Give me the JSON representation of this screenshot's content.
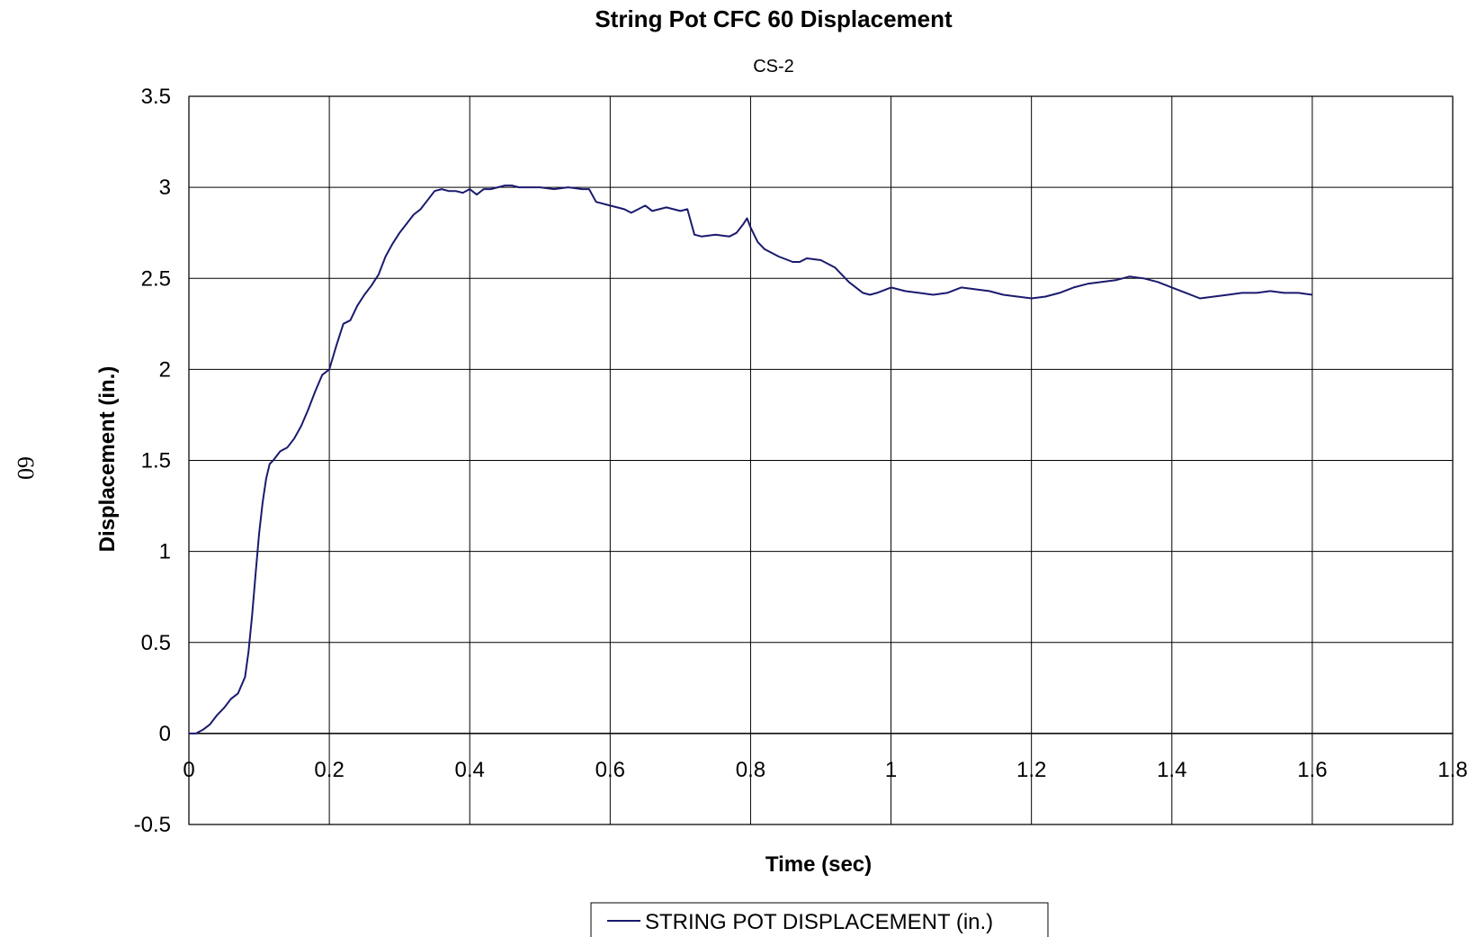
{
  "page_number": "60",
  "chart_data": {
    "type": "line",
    "title": "String Pot CFC 60 Displacement",
    "subtitle": "CS-2",
    "xlabel": "Time (sec)",
    "ylabel": "Displacement (in.)",
    "xlim": [
      0,
      1.8
    ],
    "ylim": [
      -0.5,
      3.5
    ],
    "x_ticks": [
      0,
      0.2,
      0.4,
      0.6,
      0.8,
      1,
      1.2,
      1.4,
      1.6,
      1.8
    ],
    "y_ticks": [
      -0.5,
      0,
      0.5,
      1,
      1.5,
      2,
      2.5,
      3,
      3.5
    ],
    "grid": true,
    "legend_position": "bottom",
    "line_color": "#1a1a6e",
    "series": [
      {
        "name": "STRING POT DISPLACEMENT (in.)",
        "x": [
          0,
          0.01,
          0.02,
          0.03,
          0.04,
          0.05,
          0.06,
          0.07,
          0.08,
          0.085,
          0.09,
          0.095,
          0.1,
          0.105,
          0.11,
          0.115,
          0.12,
          0.13,
          0.14,
          0.15,
          0.16,
          0.17,
          0.18,
          0.19,
          0.2,
          0.21,
          0.22,
          0.23,
          0.24,
          0.25,
          0.26,
          0.27,
          0.28,
          0.29,
          0.3,
          0.31,
          0.32,
          0.33,
          0.34,
          0.35,
          0.36,
          0.37,
          0.38,
          0.39,
          0.4,
          0.41,
          0.42,
          0.43,
          0.44,
          0.45,
          0.46,
          0.47,
          0.48,
          0.49,
          0.5,
          0.52,
          0.54,
          0.56,
          0.57,
          0.58,
          0.6,
          0.62,
          0.63,
          0.64,
          0.65,
          0.66,
          0.67,
          0.68,
          0.7,
          0.71,
          0.72,
          0.73,
          0.75,
          0.77,
          0.78,
          0.79,
          0.795,
          0.8,
          0.81,
          0.82,
          0.84,
          0.86,
          0.87,
          0.88,
          0.9,
          0.92,
          0.94,
          0.96,
          0.97,
          0.98,
          1.0,
          1.02,
          1.04,
          1.06,
          1.08,
          1.1,
          1.12,
          1.14,
          1.16,
          1.18,
          1.2,
          1.22,
          1.24,
          1.26,
          1.28,
          1.3,
          1.32,
          1.34,
          1.36,
          1.38,
          1.4,
          1.42,
          1.44,
          1.46,
          1.48,
          1.5,
          1.52,
          1.54,
          1.56,
          1.58,
          1.6
        ],
        "values": [
          0,
          0.0,
          0.02,
          0.05,
          0.1,
          0.14,
          0.19,
          0.22,
          0.31,
          0.45,
          0.65,
          0.88,
          1.1,
          1.27,
          1.4,
          1.48,
          1.5,
          1.55,
          1.57,
          1.62,
          1.69,
          1.78,
          1.88,
          1.97,
          2.0,
          2.13,
          2.25,
          2.27,
          2.35,
          2.41,
          2.46,
          2.52,
          2.62,
          2.69,
          2.75,
          2.8,
          2.85,
          2.88,
          2.93,
          2.98,
          2.99,
          2.98,
          2.98,
          2.97,
          2.99,
          2.96,
          2.99,
          2.99,
          3.0,
          3.01,
          3.01,
          3.0,
          3.0,
          3.0,
          3.0,
          2.99,
          3.0,
          2.99,
          2.99,
          2.92,
          2.9,
          2.88,
          2.86,
          2.88,
          2.9,
          2.87,
          2.88,
          2.89,
          2.87,
          2.88,
          2.74,
          2.73,
          2.74,
          2.73,
          2.75,
          2.8,
          2.83,
          2.78,
          2.7,
          2.66,
          2.62,
          2.59,
          2.59,
          2.61,
          2.6,
          2.56,
          2.48,
          2.42,
          2.41,
          2.42,
          2.45,
          2.43,
          2.42,
          2.41,
          2.42,
          2.45,
          2.44,
          2.43,
          2.41,
          2.4,
          2.39,
          2.4,
          2.42,
          2.45,
          2.47,
          2.48,
          2.49,
          2.51,
          2.5,
          2.48,
          2.45,
          2.42,
          2.39,
          2.4,
          2.41,
          2.42,
          2.42,
          2.43,
          2.42,
          2.42,
          2.41
        ]
      }
    ]
  }
}
